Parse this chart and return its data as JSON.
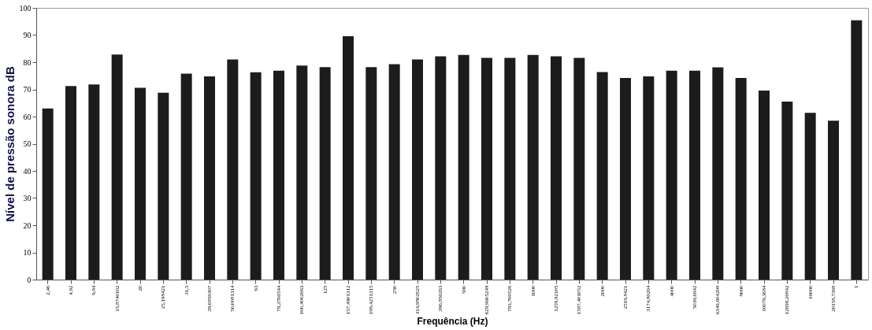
{
  "chart_data": {
    "type": "bar",
    "xlabel": "Frequência (Hz)",
    "ylabel": "Nível de pressão sonora dB",
    "categories": [
      "2,46",
      "4,92",
      "9,84",
      "15,8740102",
      "20",
      "25,198421",
      "31,5",
      "39,6850307",
      "50,0081314",
      "63",
      "79,3700544",
      "100,4062663",
      "125",
      "157,4901312",
      "198,4251315",
      "250",
      "314,9802625",
      "396,850263",
      "500",
      "629,9605249",
      "793,700526",
      "1000",
      "1259,92105",
      "1587,401052",
      "2000",
      "2519,8421",
      "3174,80204",
      "4000",
      "5039,6842",
      "6349,604208",
      "8000",
      "10079,3684",
      "12699,20842",
      "16000",
      "20158,7368",
      "1"
    ],
    "values": [
      63,
      71.2,
      71.8,
      82.8,
      70.6,
      68.8,
      75.8,
      74.8,
      81,
      76.3,
      76.9,
      78.8,
      78.2,
      89.6,
      78.2,
      79.3,
      81,
      82.2,
      82.7,
      81.6,
      81.6,
      82.7,
      82.2,
      81.6,
      76.4,
      74.2,
      74.8,
      76.9,
      76.9,
      78.1,
      74.2,
      69.6,
      65.5,
      61.4,
      58.5,
      95.4
    ],
    "color": "#1c1c1e",
    "ylim": [
      0,
      100
    ],
    "yticks": [
      0,
      10,
      20,
      30,
      40,
      50,
      60,
      70,
      80,
      90,
      100
    ],
    "grid": false
  }
}
